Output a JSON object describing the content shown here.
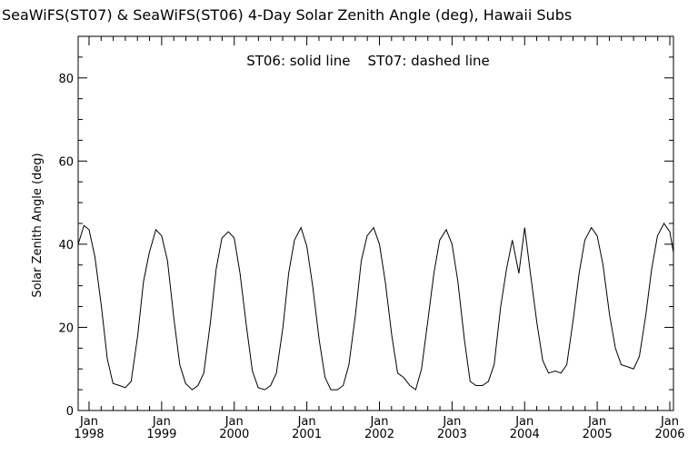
{
  "chart_data": {
    "type": "line",
    "title": "SeaWiFS(ST07) & SeaWiFS(ST06) 4-Day Solar Zenith Angle (deg), Hawaii Subs",
    "annotation": "ST06: solid line    ST07: dashed line",
    "xlabel": "",
    "ylabel": "Solar Zenith Angle (deg)",
    "xlim": [
      1997.85,
      2006.05
    ],
    "ylim": [
      0,
      90
    ],
    "grid": false,
    "y_ticks": [
      "0",
      "20",
      "40",
      "60",
      "80"
    ],
    "x_ticks": [
      {
        "month": "Jan",
        "year": "1998"
      },
      {
        "month": "Jan",
        "year": "1999"
      },
      {
        "month": "Jan",
        "year": "2000"
      },
      {
        "month": "Jan",
        "year": "2001"
      },
      {
        "month": "Jan",
        "year": "2002"
      },
      {
        "month": "Jan",
        "year": "2003"
      },
      {
        "month": "Jan",
        "year": "2004"
      },
      {
        "month": "Jan",
        "year": "2005"
      },
      {
        "month": "Jan",
        "year": "2006"
      }
    ],
    "series": [
      {
        "name": "ST06",
        "style": "solid",
        "color": "#000000",
        "x": [
          1997.85,
          1997.93,
          1998.0,
          1998.08,
          1998.17,
          1998.25,
          1998.33,
          1998.42,
          1998.5,
          1998.58,
          1998.67,
          1998.75,
          1998.83,
          1998.92,
          1999.0,
          1999.08,
          1999.17,
          1999.25,
          1999.33,
          1999.42,
          1999.5,
          1999.58,
          1999.67,
          1999.75,
          1999.83,
          1999.92,
          2000.0,
          2000.08,
          2000.17,
          2000.25,
          2000.33,
          2000.42,
          2000.5,
          2000.58,
          2000.67,
          2000.75,
          2000.83,
          2000.92,
          2001.0,
          2001.08,
          2001.17,
          2001.25,
          2001.33,
          2001.42,
          2001.5,
          2001.58,
          2001.67,
          2001.75,
          2001.83,
          2001.92,
          2002.0,
          2002.08,
          2002.17,
          2002.25,
          2002.33,
          2002.42,
          2002.5,
          2002.58,
          2002.67,
          2002.75,
          2002.83,
          2002.92,
          2003.0,
          2003.08,
          2003.17,
          2003.25,
          2003.33,
          2003.42,
          2003.5,
          2003.58,
          2003.67,
          2003.75,
          2003.83,
          2003.92,
          2004.0,
          2004.08,
          2004.17,
          2004.25,
          2004.33,
          2004.42,
          2004.5,
          2004.58,
          2004.67,
          2004.75,
          2004.83,
          2004.92,
          2005.0,
          2005.08,
          2005.17,
          2005.25,
          2005.33,
          2005.42,
          2005.5,
          2005.58,
          2005.67,
          2005.75,
          2005.83,
          2005.92,
          2006.0,
          2006.05
        ],
        "y": [
          40,
          44.5,
          43.5,
          37,
          25,
          12.5,
          6.5,
          6,
          5.5,
          7,
          18,
          31,
          38,
          43.5,
          42,
          36,
          22,
          11,
          6.5,
          5,
          6,
          9,
          21,
          34,
          41.5,
          43,
          41.5,
          33,
          20,
          9.5,
          5.5,
          5,
          6,
          9,
          20,
          33,
          41,
          44,
          39.5,
          30,
          17,
          8,
          5,
          5,
          6,
          11,
          23,
          36,
          42,
          44,
          40,
          31,
          18,
          9,
          8,
          6,
          5,
          10,
          22,
          33,
          41,
          43.5,
          40,
          31,
          17,
          7,
          6,
          6,
          7,
          11,
          25,
          34,
          41,
          33,
          44,
          33,
          21,
          12,
          9,
          9.5,
          9,
          11,
          22,
          33,
          41,
          44,
          42,
          35,
          23,
          15,
          11,
          10.5,
          10,
          13,
          23,
          34,
          42,
          45,
          43,
          38
        ]
      },
      {
        "name": "ST07",
        "style": "dashed",
        "color": "#000000",
        "x": [],
        "y": []
      }
    ]
  }
}
